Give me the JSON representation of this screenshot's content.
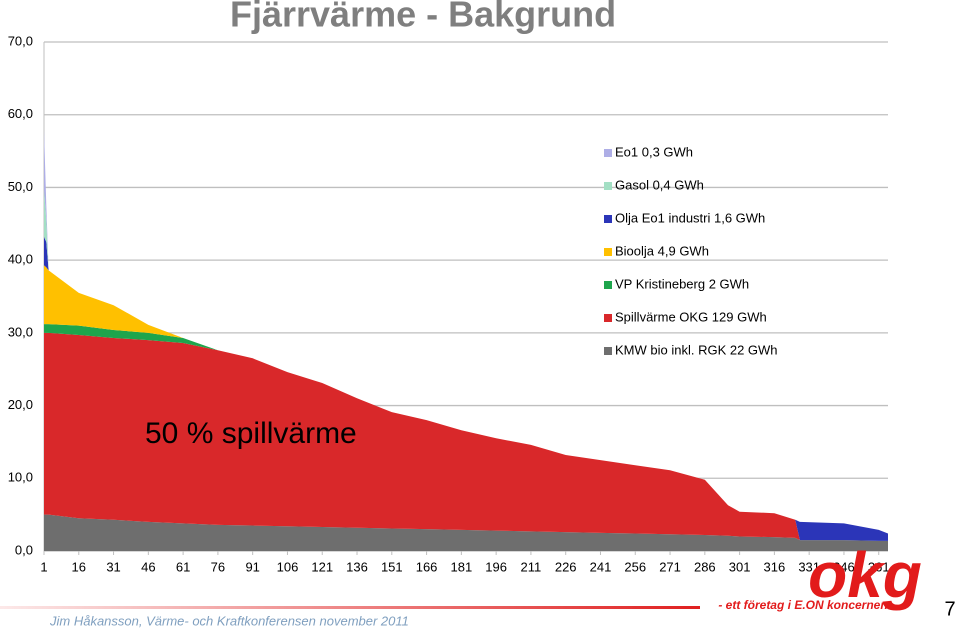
{
  "chart_data": {
    "type": "stacked-area",
    "title": "Fjärrvärme - Bakgrund",
    "annotation": "50 % spillvärme",
    "x": [
      1,
      2,
      3,
      16,
      31,
      46,
      61,
      76,
      91,
      106,
      121,
      136,
      151,
      166,
      181,
      196,
      211,
      226,
      241,
      256,
      271,
      286,
      296,
      301,
      316,
      325,
      327,
      346,
      361,
      365
    ],
    "xlim": [
      1,
      365
    ],
    "xticks": [
      1,
      16,
      31,
      46,
      61,
      76,
      91,
      106,
      121,
      136,
      151,
      166,
      181,
      196,
      211,
      226,
      241,
      256,
      271,
      286,
      301,
      316,
      331,
      346,
      361
    ],
    "ylim": [
      0,
      70
    ],
    "yticks": [
      {
        "value": 0,
        "label": "0,0"
      },
      {
        "value": 10,
        "label": "10,0"
      },
      {
        "value": 20,
        "label": "20,0"
      },
      {
        "value": 30,
        "label": "30,0"
      },
      {
        "value": 40,
        "label": "40,0"
      },
      {
        "value": 50,
        "label": "50,0"
      },
      {
        "value": 60,
        "label": "60,0"
      },
      {
        "value": 70,
        "label": "70,0"
      }
    ],
    "grid": true,
    "series": [
      {
        "name": "KMW bio inkl. RGK  22 GWh",
        "color": "#6e6e6e",
        "values": [
          5,
          5,
          5,
          4.5,
          4.3,
          4.0,
          3.8,
          3.6,
          3.5,
          3.4,
          3.3,
          3.2,
          3.1,
          3.0,
          2.9,
          2.8,
          2.7,
          2.6,
          2.5,
          2.4,
          2.3,
          2.2,
          2.1,
          2.0,
          1.9,
          1.8,
          1.5,
          1.5,
          1.4,
          1.4
        ]
      },
      {
        "name": "Spillvärme OKG  129 GWh",
        "color": "#d9282a",
        "values": [
          25,
          25,
          25,
          25.2,
          25,
          25,
          24.8,
          24,
          23,
          21.2,
          19.8,
          17.8,
          16,
          15,
          13.7,
          12.7,
          11.9,
          10.6,
          10,
          9.4,
          8.8,
          7.6,
          4.2,
          3.4,
          3.3,
          2.5,
          0,
          0,
          0,
          0
        ]
      },
      {
        "name": "VP Kristineberg  2 GWh",
        "color": "#1ea54c",
        "values": [
          1.2,
          1.2,
          1.2,
          1.3,
          1.1,
          1.0,
          0.7,
          0,
          0,
          0,
          0,
          0,
          0,
          0,
          0,
          0,
          0,
          0,
          0,
          0,
          0,
          0,
          0,
          0,
          0,
          0,
          0,
          0,
          0,
          0
        ]
      },
      {
        "name": "Bioolja  4,9 GWh",
        "color": "#ffc000",
        "values": [
          8.1,
          7.8,
          7.4,
          4.5,
          3.4,
          1.1,
          0,
          0,
          0,
          0,
          0,
          0,
          0,
          0,
          0,
          0,
          0,
          0,
          0,
          0,
          0,
          0,
          0,
          0,
          0,
          0,
          0,
          0,
          0,
          0
        ]
      },
      {
        "name": "Olja Eo1 industri  1,6 GWh",
        "color": "#2b35b8",
        "values": [
          3.9,
          3.5,
          0,
          0,
          0,
          0,
          0,
          0,
          0,
          0,
          0,
          0,
          0,
          0,
          0,
          0,
          0,
          0,
          0,
          0,
          0,
          0,
          0,
          0,
          0,
          0,
          2.5,
          2.3,
          1.5,
          1.0
        ]
      },
      {
        "name": "Gasol  0,4 GWh",
        "color": "#a3dfc4",
        "values": [
          6.5,
          3,
          0,
          0,
          0,
          0,
          0,
          0,
          0,
          0,
          0,
          0,
          0,
          0,
          0,
          0,
          0,
          0,
          0,
          0,
          0,
          0,
          0,
          0,
          0,
          0,
          0,
          0,
          0,
          0
        ]
      },
      {
        "name": "Eo1 0,3 GWh",
        "color": "#aeaee6",
        "values": [
          8.2,
          2,
          0,
          0,
          0,
          0,
          0,
          0,
          0,
          0,
          0,
          0,
          0,
          0,
          0,
          0,
          0,
          0,
          0,
          0,
          0,
          0,
          0,
          0,
          0,
          0,
          0,
          0,
          0,
          0
        ]
      }
    ]
  },
  "footer": {
    "text": "Jim Håkansson, Värme- och Kraftkonferensen november 2011",
    "page": "7",
    "logo": "okg",
    "tagline": "- ett företag i E.ON koncernen"
  }
}
